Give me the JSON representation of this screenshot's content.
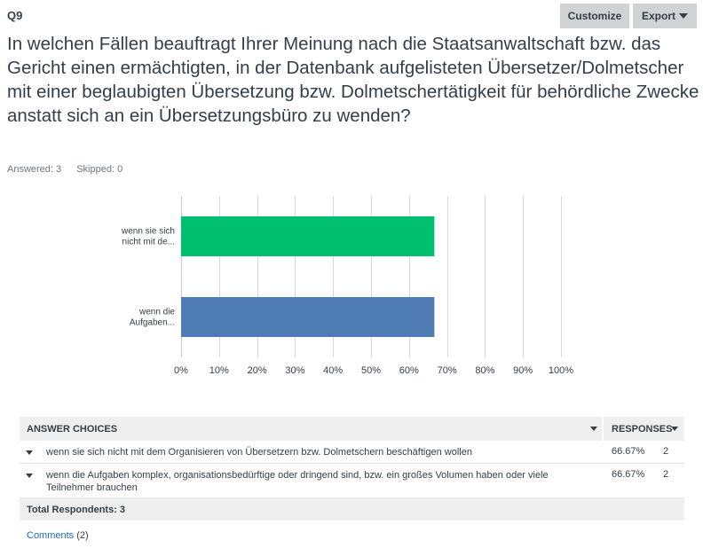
{
  "question": {
    "number": "Q9",
    "title": "In welchen Fällen beauftragt Ihrer Meinung nach die Staatsanwaltschaft bzw. das Gericht einen ermächtigten, in der Datenbank aufgelisteten Übersetzer/Dolmetscher mit einer beglaubigten Übersetzung bzw. Dolmetschertätigkeit für behördliche Zwecke anstatt sich an ein Übersetzungsbüro zu wenden?",
    "answered": "Answered: 3",
    "skipped": "Skipped: 0"
  },
  "toolbar": {
    "customize_label": "Customize",
    "export_label": "Export"
  },
  "chart_data": {
    "type": "bar",
    "orientation": "horizontal",
    "categories": [
      [
        "wenn sie sich",
        "nicht mit de..."
      ],
      [
        "wenn die",
        "Aufgaben..."
      ]
    ],
    "values": [
      66.67,
      66.67
    ],
    "colors": [
      "#00bf6f",
      "#507cb6"
    ],
    "xlim": [
      0,
      100
    ],
    "xticks": [
      "0%",
      "10%",
      "20%",
      "30%",
      "40%",
      "50%",
      "60%",
      "70%",
      "80%",
      "90%",
      "100%"
    ],
    "grid": true
  },
  "table": {
    "header_choices": "ANSWER CHOICES",
    "header_responses": "RESPONSES",
    "rows": [
      {
        "choice": "wenn sie sich nicht mit dem Organisieren von Übersetzern bzw. Dolmetschern beschäftigen wollen",
        "percent": "66.67%",
        "count": "2"
      },
      {
        "choice": "wenn die Aufgaben komplex, organisationsbedürftige oder dringend sind, bzw. ein großes Volumen haben oder viele Teilnehmer brauchen",
        "percent": "66.67%",
        "count": "2"
      }
    ],
    "total_label": "Total Respondents: 3"
  },
  "comments": {
    "label": "Comments",
    "count": "(2)"
  }
}
